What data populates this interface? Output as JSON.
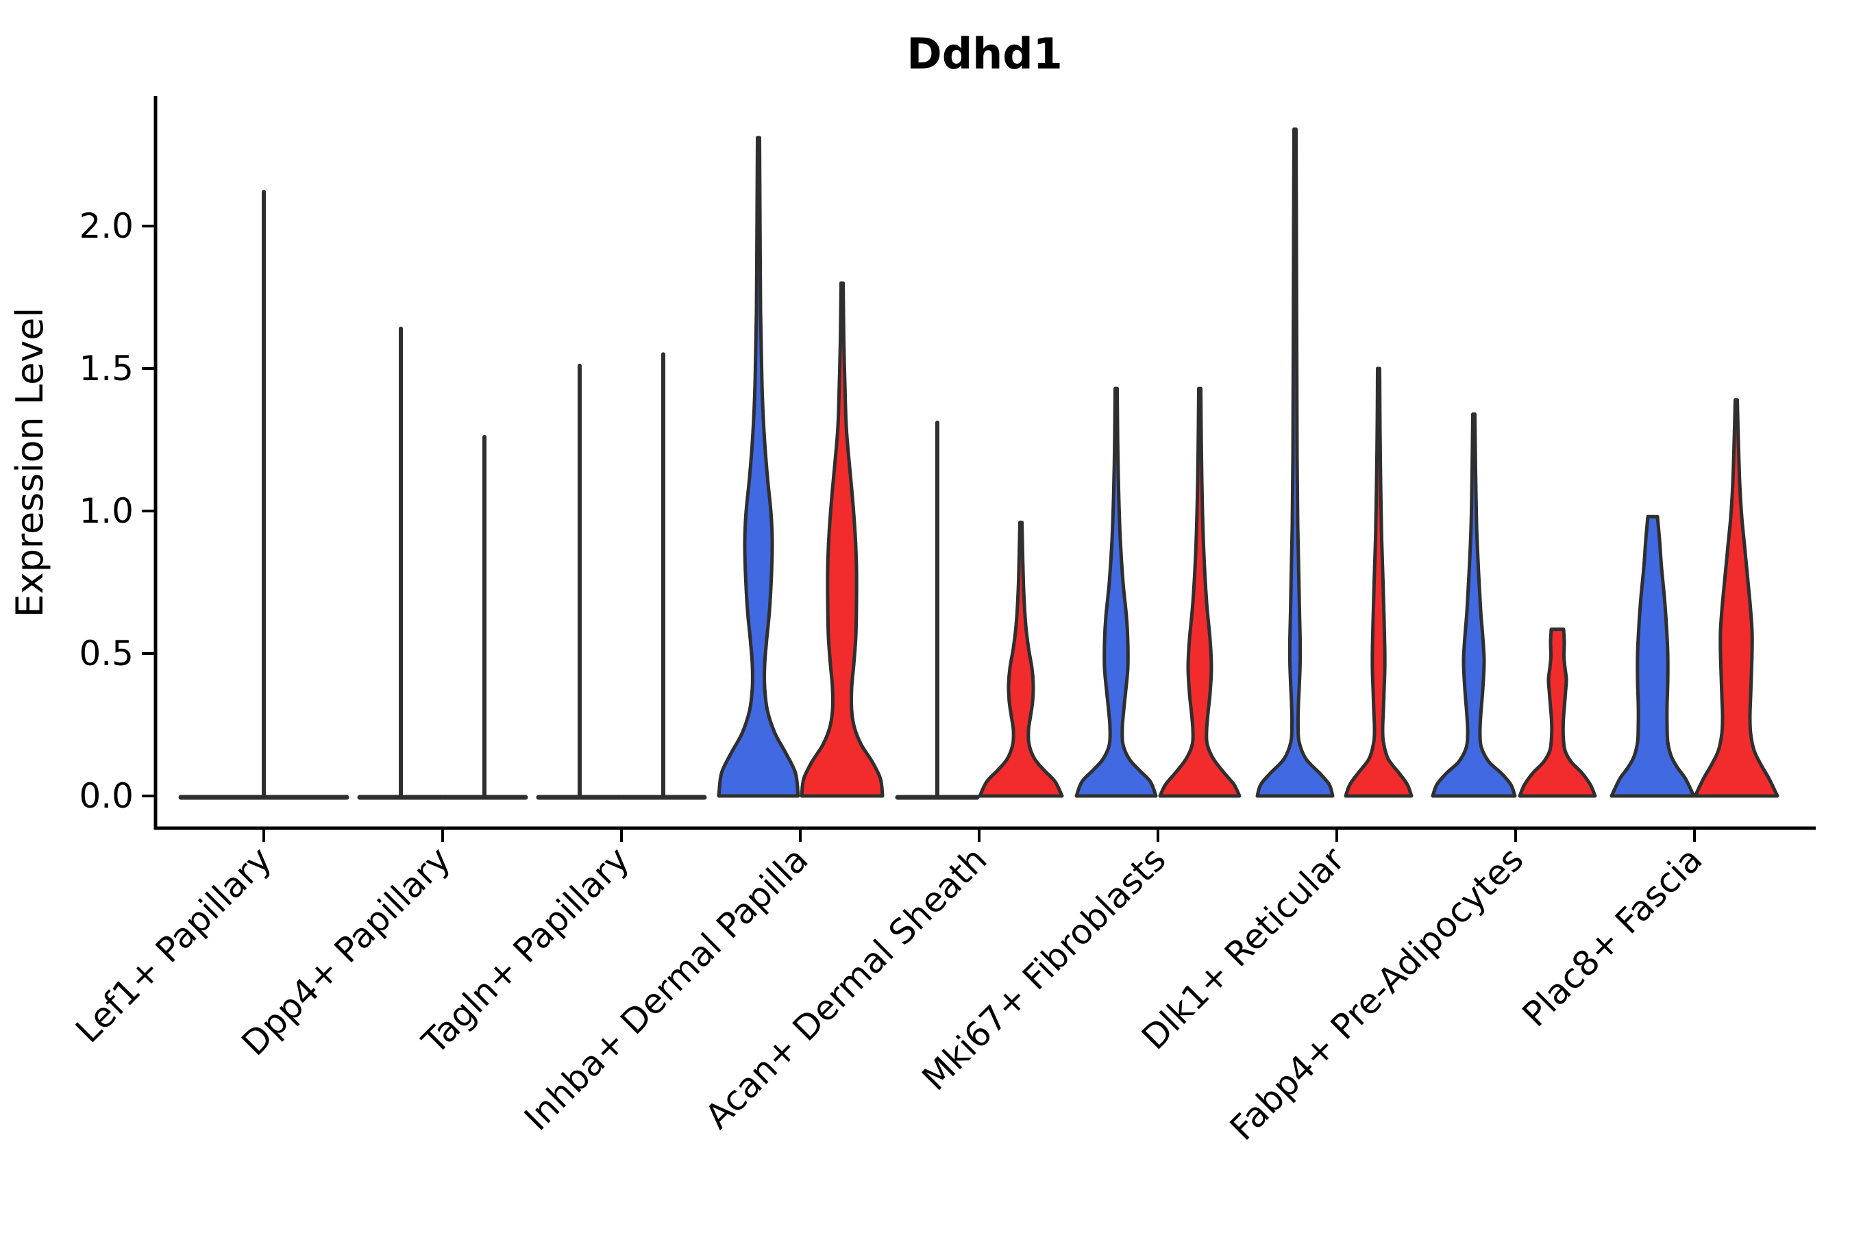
{
  "chart_data": {
    "type": "violin",
    "title": "Ddhd1",
    "xlabel": "",
    "ylabel": "Expression Level",
    "y_axis": {
      "tick_values": [
        0.0,
        0.5,
        1.0,
        1.5,
        2.0
      ],
      "tick_labels": [
        "0.0",
        "0.5",
        "1.0",
        "1.5",
        "2.0"
      ],
      "range": [
        0.0,
        2.46
      ],
      "grid": false
    },
    "legend": "none",
    "colors": {
      "blue": "#4169E1",
      "red": "#F22C2C",
      "outline": "#2F2F2F",
      "axis": "#000000"
    },
    "categories": [
      "Lef1+ Papillary",
      "Dpp4+ Papillary",
      "Tagln+ Papillary",
      "Inhba+ Dermal Papilla",
      "Acan+ Dermal Sheath",
      "Mki67+ Fibroblasts",
      "Dlk1+ Reticular",
      "Fabp4+ Pre-Adipocytes",
      "Plac8+ Fascia"
    ],
    "violins": [
      {
        "category": 0,
        "side": "full",
        "color": "none",
        "kind": "flat",
        "max_expression": 2.12,
        "line_halfwidth": 121
      },
      {
        "category": 1,
        "side": "left",
        "color": "blue",
        "kind": "flat",
        "max_expression": 1.64,
        "line_halfwidth": 60
      },
      {
        "category": 1,
        "side": "right",
        "color": "red",
        "kind": "flat",
        "max_expression": 1.26,
        "line_halfwidth": 60
      },
      {
        "category": 2,
        "side": "left",
        "color": "blue",
        "kind": "flat",
        "max_expression": 1.51,
        "line_halfwidth": 60
      },
      {
        "category": 2,
        "side": "right",
        "color": "red",
        "kind": "flat",
        "max_expression": 1.55,
        "line_halfwidth": 60
      },
      {
        "category": 3,
        "side": "left",
        "color": "blue",
        "kind": "body",
        "max_expression": 2.31,
        "profile": [
          [
            2.31,
            1.5
          ],
          [
            2.0,
            2.2
          ],
          [
            1.7,
            3
          ],
          [
            1.45,
            5
          ],
          [
            1.28,
            8
          ],
          [
            1.12,
            13
          ],
          [
            1.0,
            18
          ],
          [
            0.9,
            20
          ],
          [
            0.78,
            19
          ],
          [
            0.65,
            16
          ],
          [
            0.55,
            12
          ],
          [
            0.46,
            9
          ],
          [
            0.38,
            9
          ],
          [
            0.3,
            13
          ],
          [
            0.22,
            24
          ],
          [
            0.15,
            40
          ],
          [
            0.08,
            54
          ],
          [
            0.0,
            58
          ]
        ]
      },
      {
        "category": 3,
        "side": "right",
        "color": "red",
        "kind": "body",
        "max_expression": 1.8,
        "profile": [
          [
            1.8,
            1.5
          ],
          [
            1.6,
            2.5
          ],
          [
            1.45,
            4
          ],
          [
            1.3,
            6
          ],
          [
            1.18,
            10
          ],
          [
            1.05,
            15
          ],
          [
            0.92,
            19
          ],
          [
            0.8,
            21
          ],
          [
            0.68,
            21
          ],
          [
            0.56,
            20
          ],
          [
            0.46,
            17
          ],
          [
            0.38,
            14
          ],
          [
            0.3,
            14
          ],
          [
            0.24,
            18
          ],
          [
            0.18,
            28
          ],
          [
            0.12,
            44
          ],
          [
            0.06,
            56
          ],
          [
            0.0,
            59
          ]
        ]
      },
      {
        "category": 4,
        "side": "left",
        "color": "blue",
        "kind": "flat",
        "max_expression": 1.31,
        "line_halfwidth": 58
      },
      {
        "category": 4,
        "side": "right",
        "color": "red",
        "kind": "body",
        "max_expression": 0.96,
        "profile": [
          [
            0.96,
            1.5
          ],
          [
            0.85,
            2.5
          ],
          [
            0.72,
            4
          ],
          [
            0.6,
            7
          ],
          [
            0.52,
            11
          ],
          [
            0.45,
            16
          ],
          [
            0.39,
            18
          ],
          [
            0.33,
            17
          ],
          [
            0.28,
            14
          ],
          [
            0.23,
            11
          ],
          [
            0.18,
            12
          ],
          [
            0.13,
            20
          ],
          [
            0.09,
            34
          ],
          [
            0.05,
            50
          ],
          [
            0.0,
            60
          ]
        ]
      },
      {
        "category": 5,
        "side": "left",
        "color": "blue",
        "kind": "body",
        "max_expression": 1.43,
        "profile": [
          [
            1.43,
            1.5
          ],
          [
            1.25,
            2.2
          ],
          [
            1.08,
            3.5
          ],
          [
            0.9,
            6
          ],
          [
            0.75,
            10
          ],
          [
            0.63,
            15
          ],
          [
            0.54,
            17
          ],
          [
            0.45,
            17
          ],
          [
            0.37,
            14
          ],
          [
            0.3,
            11
          ],
          [
            0.24,
            9
          ],
          [
            0.18,
            10
          ],
          [
            0.13,
            19
          ],
          [
            0.09,
            34
          ],
          [
            0.05,
            50
          ],
          [
            0.0,
            58
          ]
        ]
      },
      {
        "category": 5,
        "side": "right",
        "color": "red",
        "kind": "body",
        "max_expression": 1.43,
        "profile": [
          [
            1.43,
            1.5
          ],
          [
            1.25,
            2.2
          ],
          [
            1.05,
            3.5
          ],
          [
            0.85,
            6
          ],
          [
            0.68,
            10
          ],
          [
            0.55,
            15
          ],
          [
            0.45,
            17
          ],
          [
            0.36,
            15
          ],
          [
            0.29,
            12
          ],
          [
            0.23,
            10
          ],
          [
            0.18,
            11
          ],
          [
            0.13,
            20
          ],
          [
            0.08,
            36
          ],
          [
            0.04,
            50
          ],
          [
            0.0,
            58
          ]
        ]
      },
      {
        "category": 6,
        "side": "left",
        "color": "blue",
        "kind": "body",
        "max_expression": 2.34,
        "profile": [
          [
            2.34,
            1.5
          ],
          [
            2.0,
            2
          ],
          [
            1.6,
            2.5
          ],
          [
            1.2,
            3
          ],
          [
            0.95,
            4
          ],
          [
            0.78,
            5.5
          ],
          [
            0.65,
            6.5
          ],
          [
            0.55,
            7.5
          ],
          [
            0.47,
            7.5
          ],
          [
            0.4,
            6.5
          ],
          [
            0.32,
            5
          ],
          [
            0.25,
            4.5
          ],
          [
            0.19,
            6
          ],
          [
            0.13,
            16
          ],
          [
            0.08,
            36
          ],
          [
            0.04,
            50
          ],
          [
            0.0,
            55
          ]
        ]
      },
      {
        "category": 6,
        "side": "right",
        "color": "red",
        "kind": "body",
        "max_expression": 1.5,
        "profile": [
          [
            1.5,
            1.5
          ],
          [
            1.3,
            2
          ],
          [
            1.1,
            3
          ],
          [
            0.9,
            4.5
          ],
          [
            0.75,
            6.5
          ],
          [
            0.62,
            8
          ],
          [
            0.52,
            9
          ],
          [
            0.44,
            9
          ],
          [
            0.37,
            8
          ],
          [
            0.3,
            7
          ],
          [
            0.24,
            6
          ],
          [
            0.19,
            7
          ],
          [
            0.13,
            14
          ],
          [
            0.08,
            30
          ],
          [
            0.04,
            42
          ],
          [
            0.0,
            48
          ]
        ]
      },
      {
        "category": 7,
        "side": "left",
        "color": "blue",
        "kind": "body",
        "max_expression": 1.34,
        "profile": [
          [
            1.34,
            1.5
          ],
          [
            1.15,
            2.5
          ],
          [
            0.95,
            4
          ],
          [
            0.78,
            7
          ],
          [
            0.65,
            10
          ],
          [
            0.56,
            13
          ],
          [
            0.48,
            15
          ],
          [
            0.41,
            14
          ],
          [
            0.34,
            12
          ],
          [
            0.28,
            10
          ],
          [
            0.22,
            9
          ],
          [
            0.17,
            11
          ],
          [
            0.12,
            22
          ],
          [
            0.08,
            40
          ],
          [
            0.04,
            54
          ],
          [
            0.0,
            60
          ]
        ]
      },
      {
        "category": 7,
        "side": "right",
        "color": "red",
        "kind": "body",
        "max_expression": 0.585,
        "profile": [
          [
            0.585,
            9
          ],
          [
            0.54,
            10
          ],
          [
            0.49,
            9.5
          ],
          [
            0.45,
            11
          ],
          [
            0.41,
            13
          ],
          [
            0.37,
            12
          ],
          [
            0.31,
            10
          ],
          [
            0.26,
            8.5
          ],
          [
            0.21,
            8.5
          ],
          [
            0.16,
            11
          ],
          [
            0.12,
            20
          ],
          [
            0.08,
            36
          ],
          [
            0.04,
            48
          ],
          [
            0.0,
            55
          ]
        ]
      },
      {
        "category": 8,
        "side": "left",
        "color": "blue",
        "kind": "body",
        "max_expression": 0.98,
        "profile": [
          [
            0.98,
            7
          ],
          [
            0.9,
            10
          ],
          [
            0.8,
            13
          ],
          [
            0.7,
            17
          ],
          [
            0.6,
            20
          ],
          [
            0.5,
            22
          ],
          [
            0.4,
            22
          ],
          [
            0.32,
            21
          ],
          [
            0.25,
            21
          ],
          [
            0.19,
            22
          ],
          [
            0.14,
            27
          ],
          [
            0.1,
            36
          ],
          [
            0.06,
            48
          ],
          [
            0.0,
            60
          ]
        ]
      },
      {
        "category": 8,
        "side": "right",
        "color": "red",
        "kind": "body",
        "max_expression": 1.39,
        "profile": [
          [
            1.39,
            1.5
          ],
          [
            1.25,
            3
          ],
          [
            1.1,
            5
          ],
          [
            0.98,
            8
          ],
          [
            0.88,
            12
          ],
          [
            0.78,
            16
          ],
          [
            0.68,
            20
          ],
          [
            0.58,
            23
          ],
          [
            0.5,
            23
          ],
          [
            0.42,
            22
          ],
          [
            0.35,
            21
          ],
          [
            0.28,
            20
          ],
          [
            0.22,
            21
          ],
          [
            0.16,
            26
          ],
          [
            0.11,
            36
          ],
          [
            0.06,
            48
          ],
          [
            0.0,
            60
          ]
        ]
      }
    ]
  }
}
